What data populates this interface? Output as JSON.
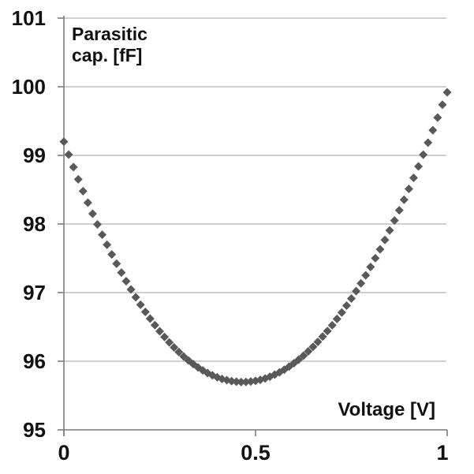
{
  "chart_data": {
    "type": "scatter",
    "title": "Parasitic cap. [fF] vs Voltage [V]",
    "title_lines": [
      "Parasitic",
      "cap. [fF]"
    ],
    "xlabel": "Voltage [V]",
    "ylabel": "Parasitic cap. [fF]",
    "xlim": [
      0,
      1
    ],
    "ylim": [
      95,
      101
    ],
    "grid": true,
    "legend": "none",
    "marker": "diamond",
    "marker_color": "#595959",
    "gridline_color": "#b5b5b5",
    "axis_color": "#7f7f7f",
    "text_color": "#111111",
    "x_tick_labels": [
      "0",
      "0.5",
      "1"
    ],
    "x_tick_values": [
      0,
      0.5,
      1
    ],
    "y_tick_labels": [
      "101",
      "100",
      "99",
      "98",
      "97",
      "96",
      "95"
    ],
    "y_tick_values": [
      101,
      100,
      99,
      98,
      97,
      96,
      95
    ],
    "x": [
      0,
      0.0125,
      0.025,
      0.0375,
      0.05,
      0.0625,
      0.075,
      0.0875,
      0.1,
      0.1125,
      0.125,
      0.1375,
      0.15,
      0.1625,
      0.175,
      0.1875,
      0.2,
      0.2125,
      0.225,
      0.2375,
      0.25,
      0.2625,
      0.275,
      0.2875,
      0.3,
      0.3125,
      0.325,
      0.3375,
      0.35,
      0.3625,
      0.375,
      0.3875,
      0.4,
      0.4125,
      0.425,
      0.4375,
      0.45,
      0.4625,
      0.475,
      0.4875,
      0.5,
      0.5125,
      0.525,
      0.5375,
      0.55,
      0.5625,
      0.575,
      0.5875,
      0.6,
      0.6125,
      0.625,
      0.6375,
      0.65,
      0.6625,
      0.675,
      0.6875,
      0.7,
      0.7125,
      0.725,
      0.7375,
      0.75,
      0.7625,
      0.775,
      0.7875,
      0.8,
      0.8125,
      0.825,
      0.8375,
      0.85,
      0.8625,
      0.875,
      0.8875,
      0.9,
      0.9125,
      0.925,
      0.9375,
      0.95,
      0.9625,
      0.975,
      0.9875,
      1.0
    ],
    "values": [
      99.2,
      99.012,
      98.829,
      98.651,
      98.479,
      98.311,
      98.15,
      97.994,
      97.843,
      97.697,
      97.556,
      97.421,
      97.291,
      97.166,
      97.046,
      96.932,
      96.823,
      96.719,
      96.62,
      96.526,
      96.437,
      96.353,
      96.275,
      96.201,
      96.133,
      96.069,
      96.011,
      95.958,
      95.909,
      95.866,
      95.828,
      95.794,
      95.766,
      95.742,
      95.724,
      95.71,
      95.701,
      95.697,
      95.698,
      95.704,
      95.714,
      95.729,
      95.749,
      95.774,
      95.805,
      95.838,
      95.877,
      95.921,
      95.97,
      96.023,
      96.081,
      96.143,
      96.21,
      96.282,
      96.359,
      96.44,
      96.525,
      96.616,
      96.71,
      96.81,
      96.914,
      97.022,
      97.135,
      97.252,
      97.374,
      97.501,
      97.631,
      97.767,
      97.907,
      98.051,
      98.2,
      98.353,
      98.511,
      98.673,
      98.839,
      99.01,
      99.186,
      99.366,
      99.55,
      99.738,
      99.92
    ]
  }
}
